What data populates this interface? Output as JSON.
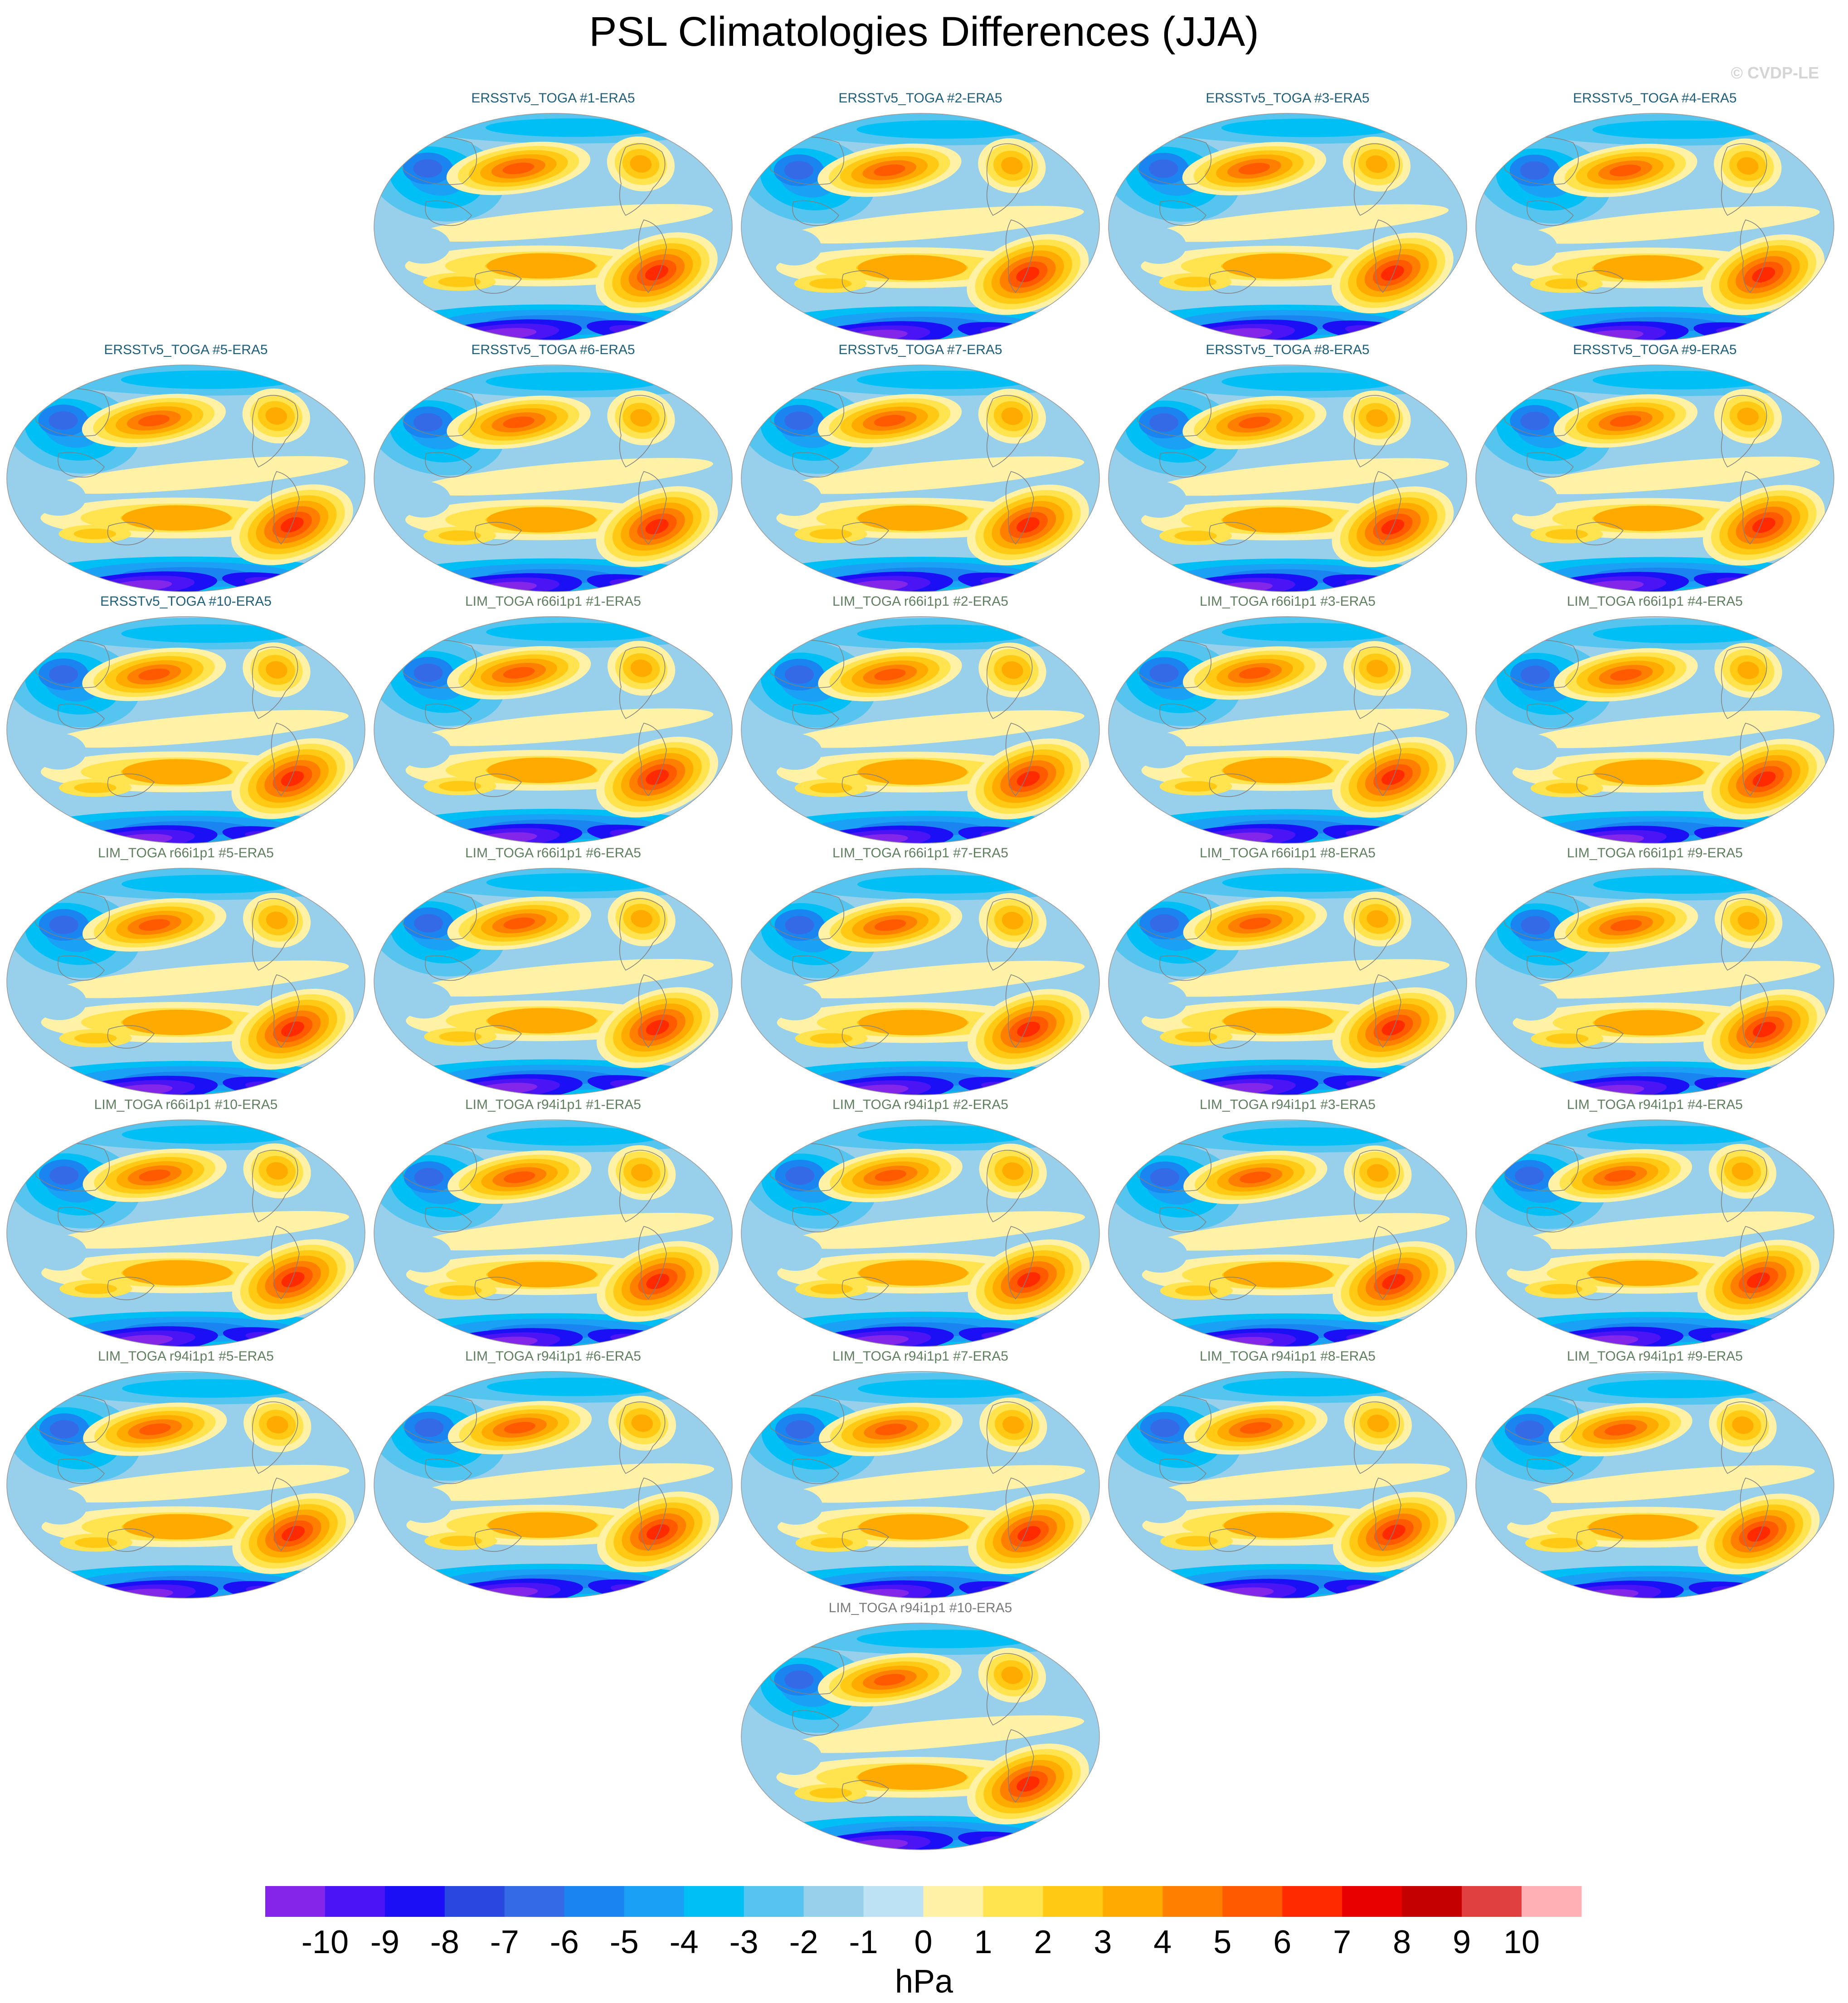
{
  "title": "PSL Climatologies Differences (JJA)",
  "copyright": "© CVDP-LE",
  "colors": {
    "obs_title": "#1f5f7a",
    "model_title": "#5f7f5f",
    "last_title": "#7a7a7a"
  },
  "chart_data": {
    "type": "heatmap",
    "variable": "PSL",
    "season": "JJA",
    "units": "hPa",
    "colorbar": {
      "tick_labels": [
        "-10",
        "-9",
        "-8",
        "-7",
        "-6",
        "-5",
        "-4",
        "-3",
        "-2",
        "-1",
        "0",
        "1",
        "2",
        "3",
        "4",
        "5",
        "6",
        "7",
        "8",
        "9",
        "10"
      ],
      "colors": [
        "#8426ea",
        "#4a14f5",
        "#1a0ff5",
        "#2a48e0",
        "#356ae6",
        "#1a85f0",
        "#1aa0f5",
        "#00bff5",
        "#55c4ef",
        "#98d0ec",
        "#bde2f4",
        "#fff2a6",
        "#ffe34f",
        "#ffc914",
        "#ffaa00",
        "#ff8000",
        "#ff5a00",
        "#ff2a00",
        "#e80000",
        "#c40000",
        "#e04040",
        "#ffb0b5"
      ]
    },
    "panels": [
      {
        "label": "ERSSTv5_TOGA #1-ERA5",
        "group": "obs"
      },
      {
        "label": "ERSSTv5_TOGA #2-ERA5",
        "group": "obs"
      },
      {
        "label": "ERSSTv5_TOGA #3-ERA5",
        "group": "obs"
      },
      {
        "label": "ERSSTv5_TOGA #4-ERA5",
        "group": "obs"
      },
      {
        "label": "ERSSTv5_TOGA #5-ERA5",
        "group": "obs"
      },
      {
        "label": "ERSSTv5_TOGA #6-ERA5",
        "group": "obs"
      },
      {
        "label": "ERSSTv5_TOGA #7-ERA5",
        "group": "obs"
      },
      {
        "label": "ERSSTv5_TOGA #8-ERA5",
        "group": "obs"
      },
      {
        "label": "ERSSTv5_TOGA #9-ERA5",
        "group": "obs"
      },
      {
        "label": "ERSSTv5_TOGA #10-ERA5",
        "group": "obs"
      },
      {
        "label": "LIM_TOGA r66i1p1 #1-ERA5",
        "group": "model"
      },
      {
        "label": "LIM_TOGA r66i1p1 #2-ERA5",
        "group": "model"
      },
      {
        "label": "LIM_TOGA r66i1p1 #3-ERA5",
        "group": "model"
      },
      {
        "label": "LIM_TOGA r66i1p1 #4-ERA5",
        "group": "model"
      },
      {
        "label": "LIM_TOGA r66i1p1 #5-ERA5",
        "group": "model"
      },
      {
        "label": "LIM_TOGA r66i1p1 #6-ERA5",
        "group": "model"
      },
      {
        "label": "LIM_TOGA r66i1p1 #7-ERA5",
        "group": "model"
      },
      {
        "label": "LIM_TOGA r66i1p1 #8-ERA5",
        "group": "model"
      },
      {
        "label": "LIM_TOGA r66i1p1 #9-ERA5",
        "group": "model"
      },
      {
        "label": "LIM_TOGA r66i1p1 #10-ERA5",
        "group": "model"
      },
      {
        "label": "LIM_TOGA r94i1p1 #1-ERA5",
        "group": "model2"
      },
      {
        "label": "LIM_TOGA r94i1p1 #2-ERA5",
        "group": "model2"
      },
      {
        "label": "LIM_TOGA r94i1p1 #3-ERA5",
        "group": "model2"
      },
      {
        "label": "LIM_TOGA r94i1p1 #4-ERA5",
        "group": "model2"
      },
      {
        "label": "LIM_TOGA r94i1p1 #5-ERA5",
        "group": "model2"
      },
      {
        "label": "LIM_TOGA r94i1p1 #6-ERA5",
        "group": "model2"
      },
      {
        "label": "LIM_TOGA r94i1p1 #7-ERA5",
        "group": "model2"
      },
      {
        "label": "LIM_TOGA r94i1p1 #8-ERA5",
        "group": "model2"
      },
      {
        "label": "LIM_TOGA r94i1p1 #9-ERA5",
        "group": "model2"
      },
      {
        "label": "LIM_TOGA r94i1p1 #10-ERA5",
        "group": "model2"
      }
    ]
  }
}
